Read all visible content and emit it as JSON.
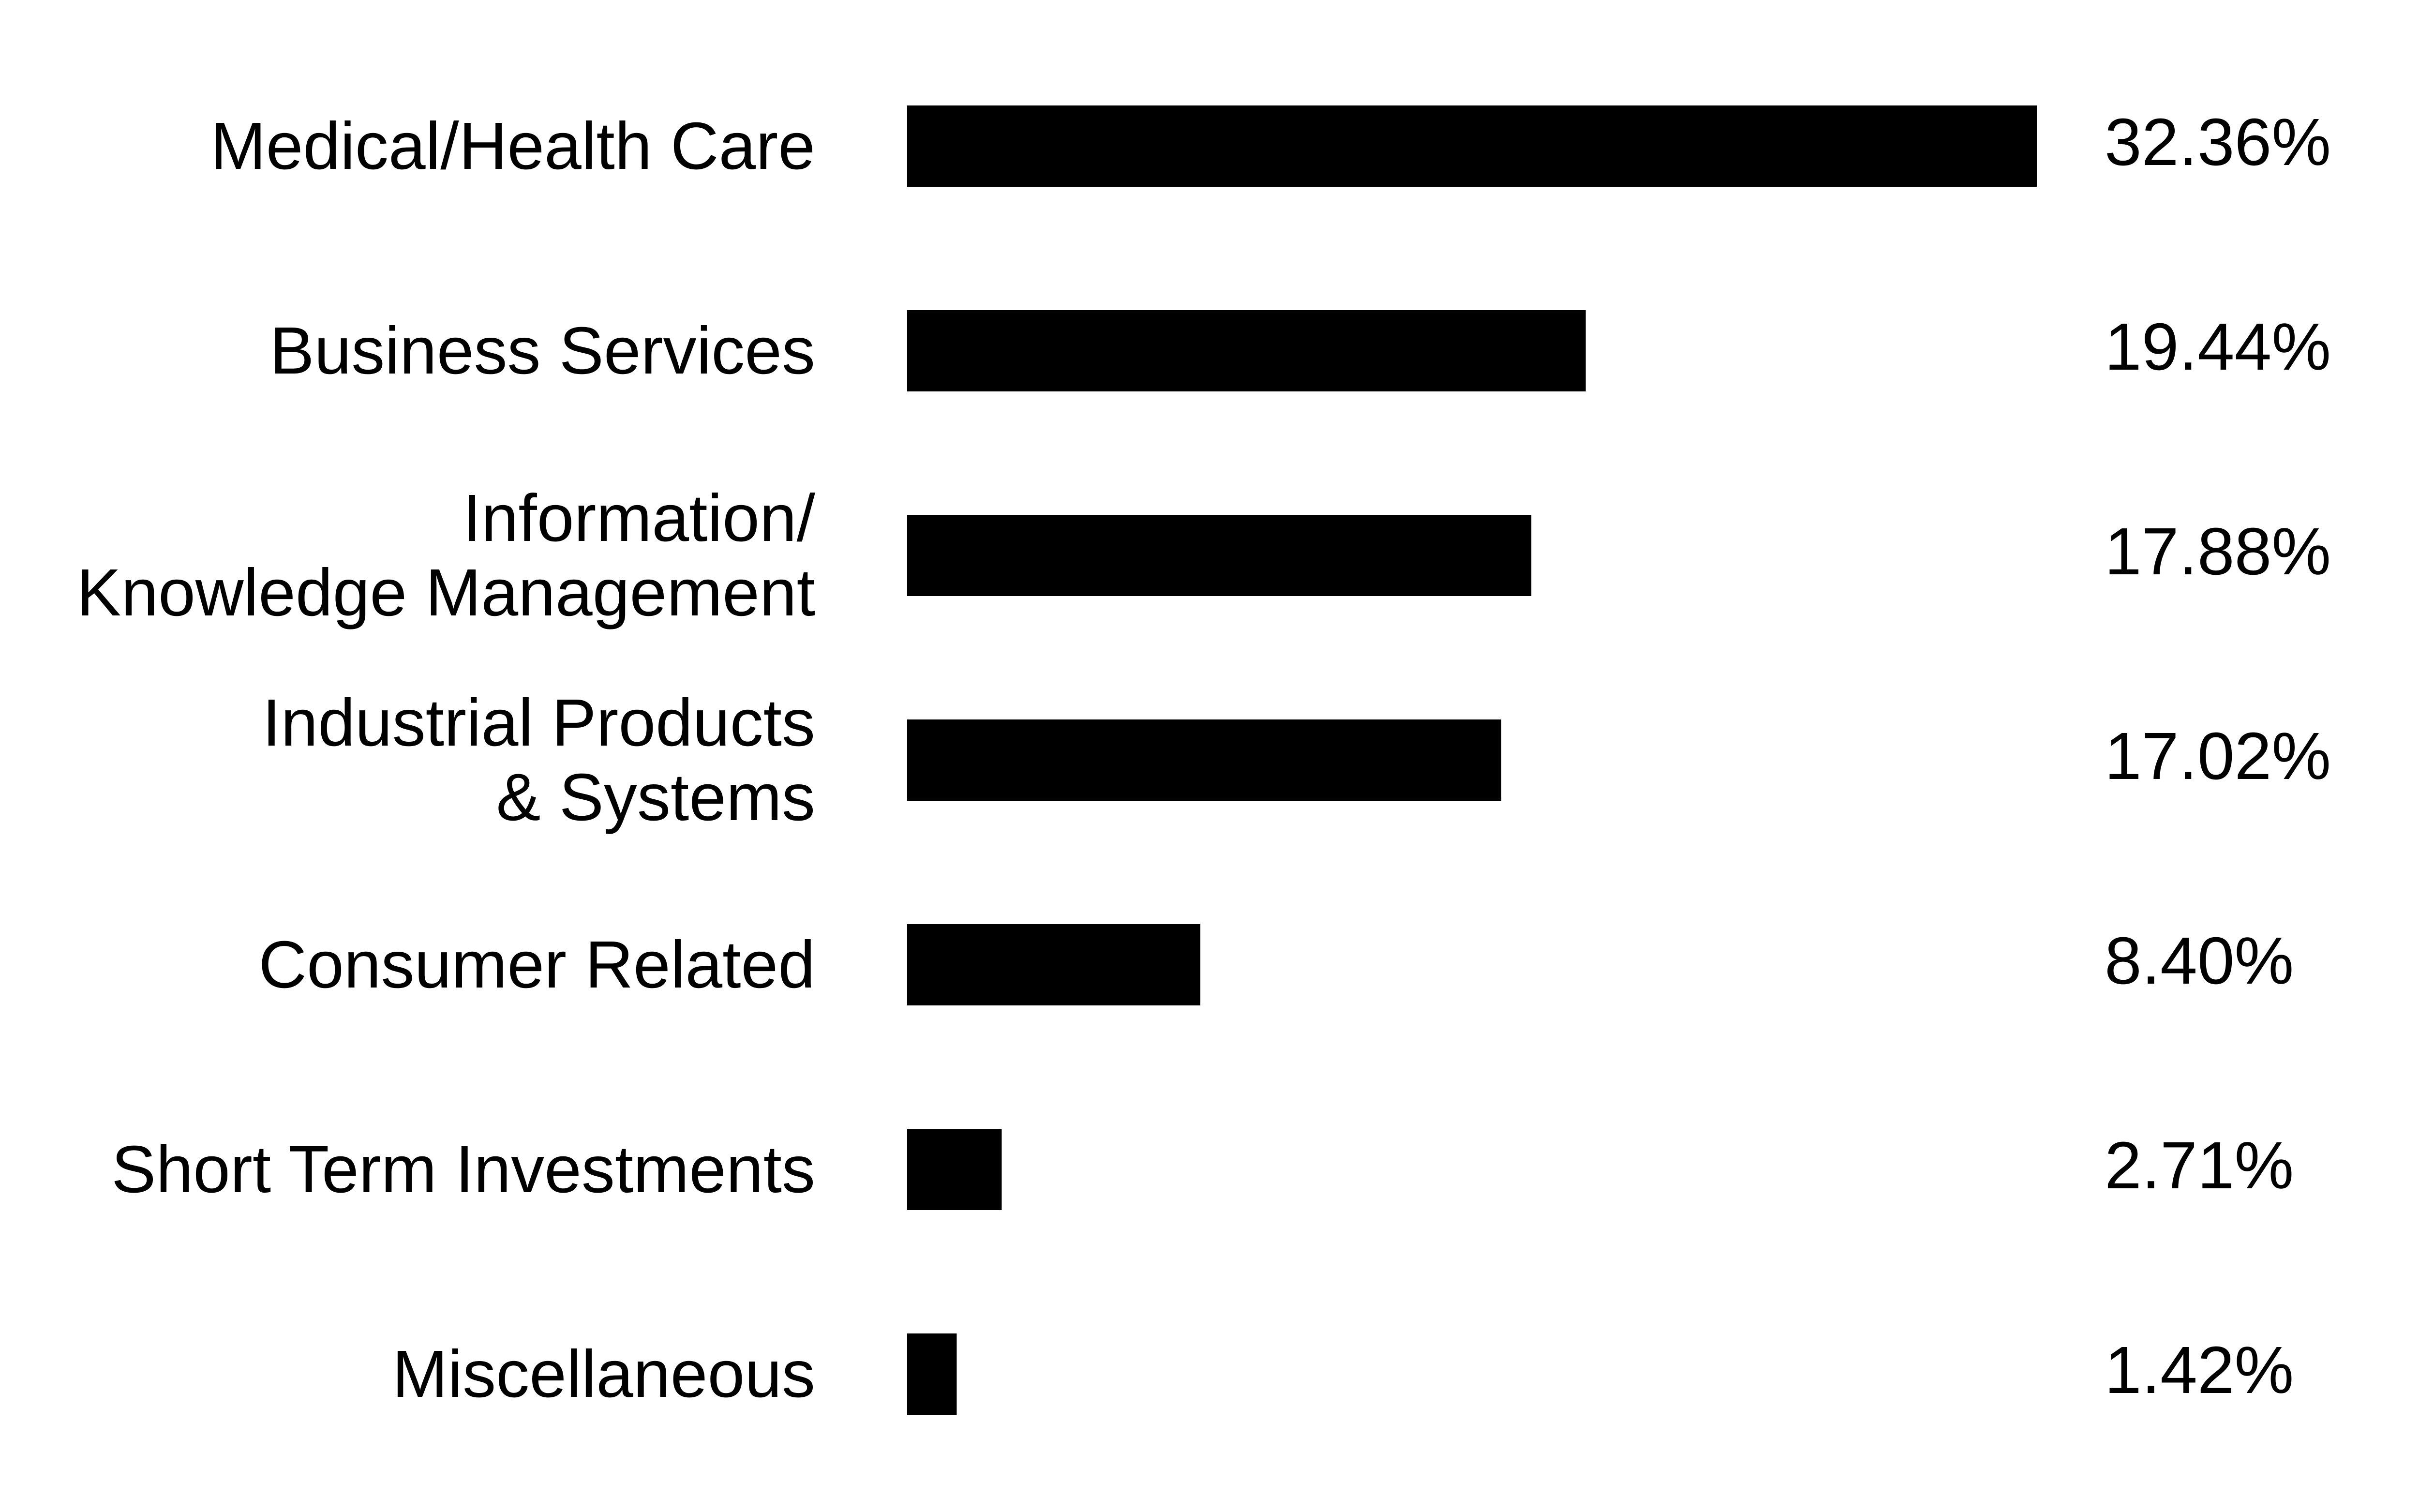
{
  "chart_data": {
    "type": "bar",
    "orientation": "horizontal",
    "categories": [
      [
        "Medical/Health Care"
      ],
      [
        "Business Services"
      ],
      [
        "Information/",
        "Knowledge Management"
      ],
      [
        "Industrial Products",
        "& Systems"
      ],
      [
        "Consumer Related"
      ],
      [
        "Short Term Investments"
      ],
      [
        "Miscellaneous"
      ]
    ],
    "values": [
      32.36,
      19.44,
      17.88,
      17.02,
      8.4,
      2.71,
      1.42
    ],
    "value_labels": [
      "32.36%",
      "19.44%",
      "17.88%",
      "17.02%",
      "8.40%",
      "2.71%",
      "1.42%"
    ],
    "bar_color": "#000000",
    "title": "",
    "xlabel": "",
    "ylabel": "",
    "xlim": [
      0,
      32.36
    ],
    "grid": false,
    "legend": "none"
  }
}
